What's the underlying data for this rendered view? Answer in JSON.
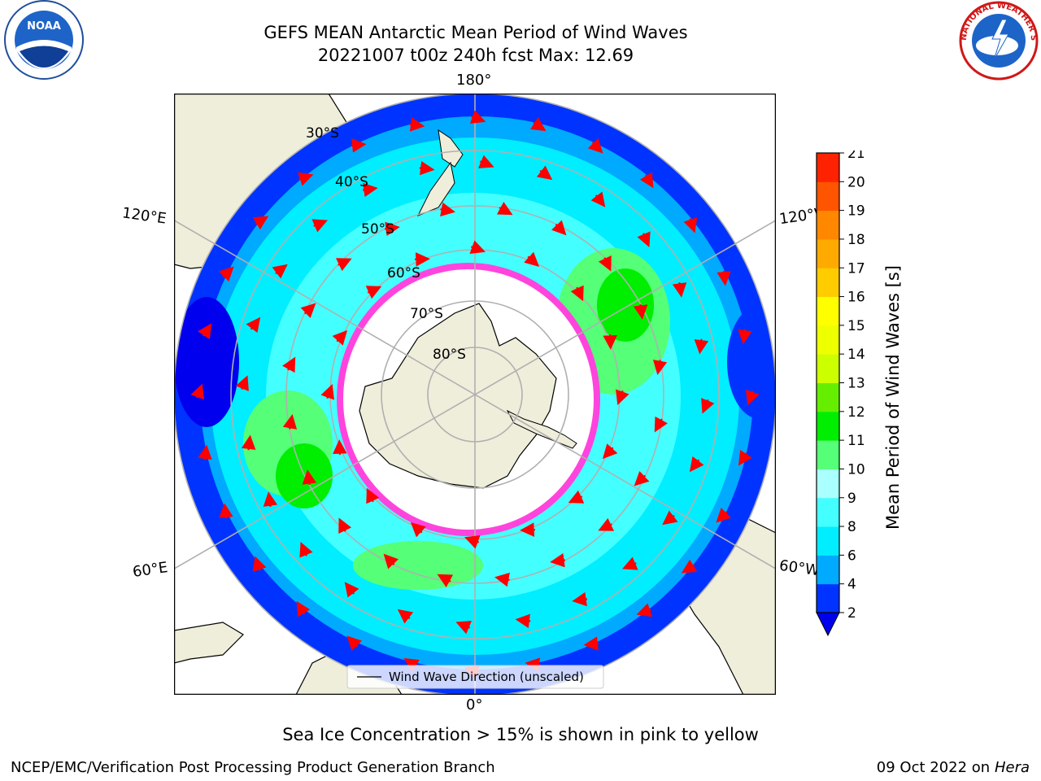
{
  "title": {
    "line1": "GEFS MEAN Antarctic Mean Period of Wind Waves",
    "line2": "20221007 t00z 240h fcst   Max: 12.69"
  },
  "map": {
    "longitude_labels": {
      "top": "180°",
      "bottom": "0°",
      "left_upper": "120°E",
      "left_lower": "60°E",
      "right_upper": "120°W",
      "right_lower": "60°W"
    },
    "latitude_labels": [
      "30°S",
      "40°S",
      "50°S",
      "60°S",
      "70°S",
      "80°S"
    ],
    "legend_label": "Wind Wave Direction (unscaled)"
  },
  "colorbar": {
    "title": "Mean Period of Wind Waves [s]",
    "ticks": [
      "2",
      "4",
      "6",
      "8",
      "9",
      "10",
      "11",
      "12",
      "13",
      "14",
      "15",
      "16",
      "17",
      "18",
      "19",
      "20",
      "21"
    ],
    "colors": [
      "#0033ff",
      "#00aaff",
      "#00eeff",
      "#44ffff",
      "#aaffff",
      "#55ff77",
      "#00ee00",
      "#66ee00",
      "#ccff00",
      "#eeff00",
      "#ffff00",
      "#ffcc00",
      "#ffaa00",
      "#ff8800",
      "#ff5500",
      "#ff2200"
    ],
    "extend_color": "#0000ee"
  },
  "note": "Sea Ice Concentration > 15% is shown in pink to yellow",
  "footer": {
    "left": "NCEP/EMC/Verification Post Processing Product Generation Branch",
    "date": "09 Oct 2022 on",
    "machine": "Hera"
  },
  "logos": {
    "noaa": "NOAA",
    "nws_ring": "NATIONAL WEATHER SERVICE"
  },
  "colors": {
    "land": "#efeedb",
    "ocean_far": "#0033ff",
    "ocean_mid": "#00aaff",
    "ocean_near": "#00eeff",
    "ocean_light": "#44ffff",
    "wave_green": "#55ff77",
    "sea_ice": "#ff44dd",
    "arrow": "#ff0000",
    "grid": "#b0b0b0"
  }
}
